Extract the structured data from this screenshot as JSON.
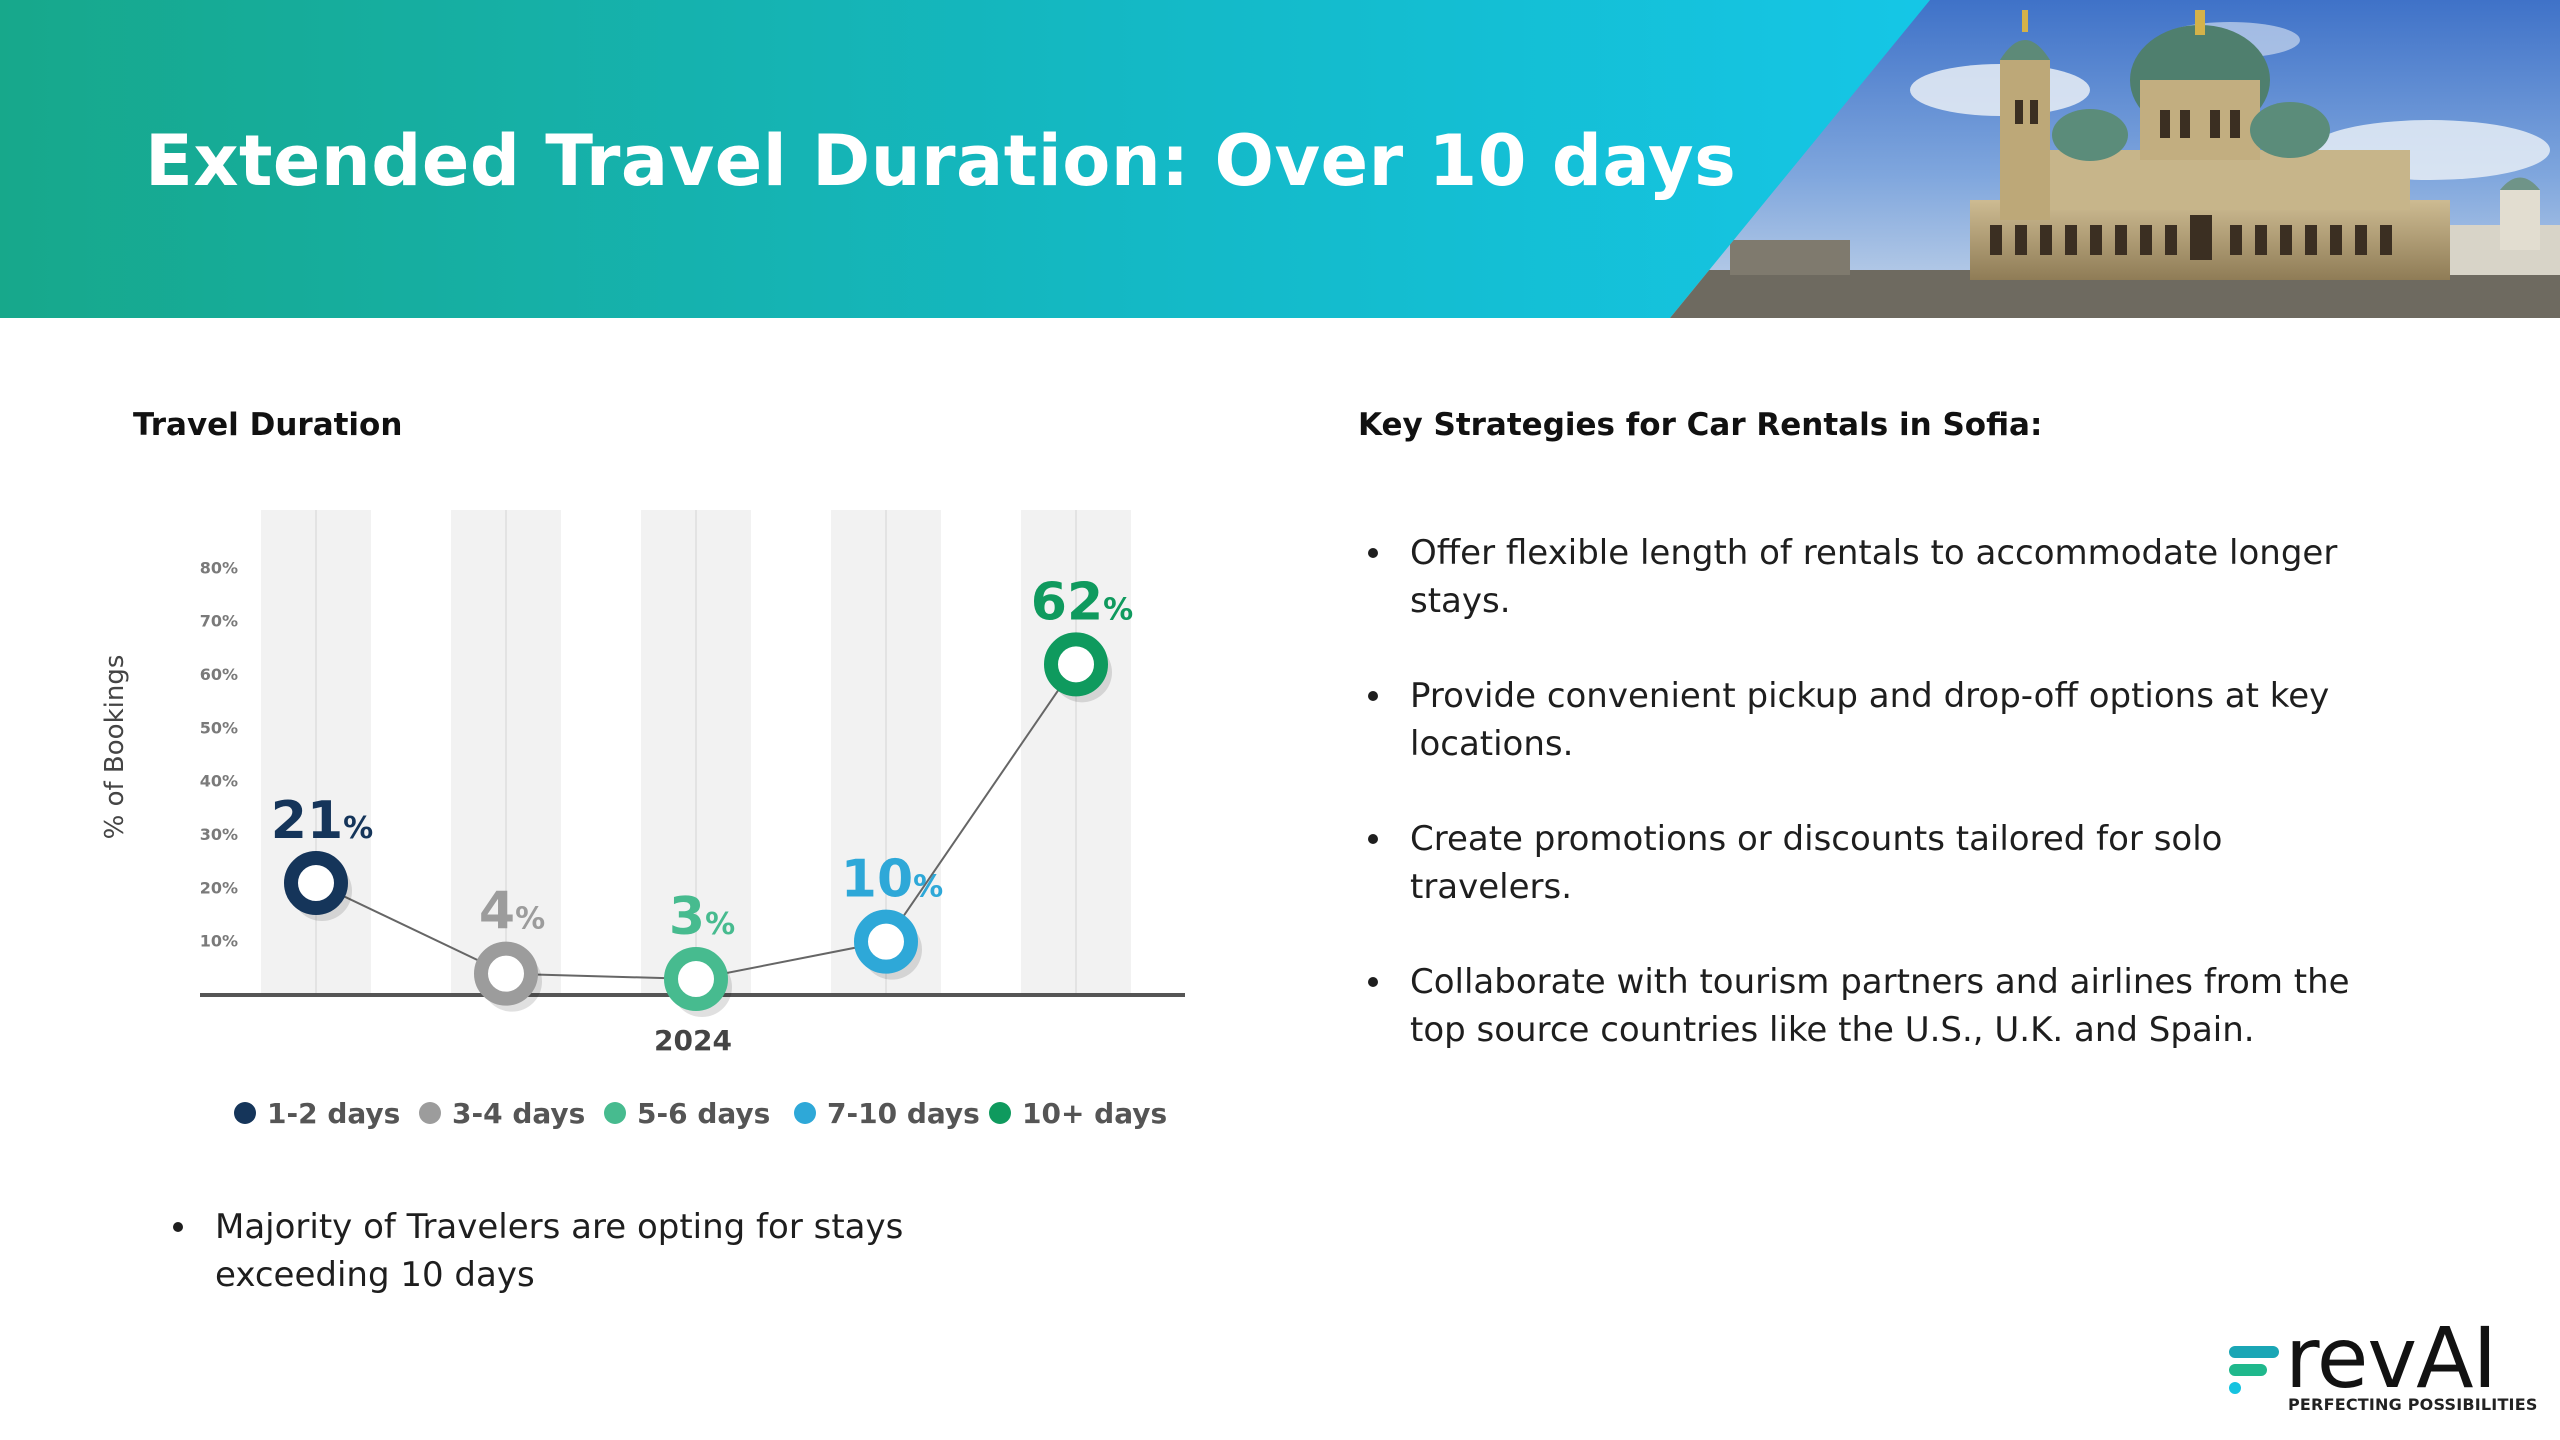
{
  "header": {
    "title": "Extended Travel Duration: Over 10 days"
  },
  "left": {
    "title": "Travel Duration",
    "bullets": [
      "Majority of Travelers are opting for stays exceeding 10 days"
    ]
  },
  "right": {
    "title": "Key Strategies for Car Rentals in Sofia:",
    "bullets": [
      "Offer flexible length of rentals to accommodate longer stays.",
      "Provide convenient pickup and drop-off options at key locations.",
      "Create promotions or discounts tailored for solo travelers.",
      "Collaborate with tourism partners and airlines from the top source countries like the U.S., U.K. and Spain."
    ]
  },
  "logo": {
    "name": "revAI",
    "tagline": "PERFECTING POSSIBILITIES"
  },
  "chart_data": {
    "type": "line",
    "title": "",
    "xlabel": "2024",
    "ylabel": "% of Bookings",
    "ylim": [
      0,
      90
    ],
    "yticks": [
      "10%",
      "20%",
      "30%",
      "40%",
      "50%",
      "60%",
      "70%",
      "80%"
    ],
    "categories": [
      "1-2 days",
      "3-4 days",
      "5-6 days",
      "7-10 days",
      "10+ days"
    ],
    "values": [
      21,
      4,
      3,
      10,
      62
    ],
    "labels": [
      "21",
      "4",
      "3",
      "10",
      "62"
    ],
    "unit": "%",
    "colors": [
      "#15355a",
      "#9c9c9c",
      "#47bb8f",
      "#2ea8d8",
      "#0f9a5e"
    ],
    "legend": "bottom",
    "grid": false
  }
}
